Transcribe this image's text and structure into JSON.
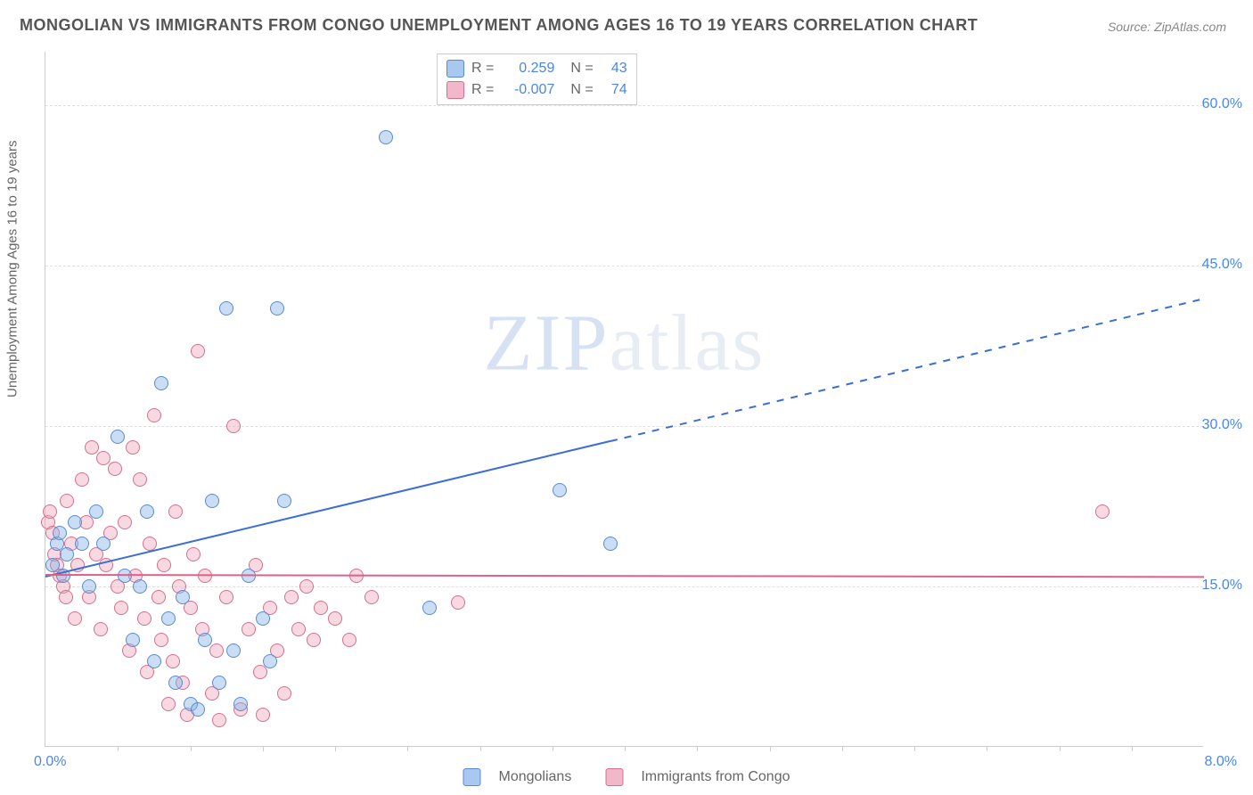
{
  "title": "MONGOLIAN VS IMMIGRANTS FROM CONGO UNEMPLOYMENT AMONG AGES 16 TO 19 YEARS CORRELATION CHART",
  "source": "Source: ZipAtlas.com",
  "watermark_zip": "ZIP",
  "watermark_rest": "atlas",
  "chart": {
    "type": "scatter",
    "y_axis_label": "Unemployment Among Ages 16 to 19 years",
    "xlim": [
      0,
      8.0
    ],
    "ylim": [
      0,
      65
    ],
    "x_ticks": [
      0.0,
      8.0
    ],
    "x_tick_labels": [
      "0.0%",
      "8.0%"
    ],
    "y_ticks": [
      15.0,
      30.0,
      45.0,
      60.0
    ],
    "y_tick_labels": [
      "15.0%",
      "30.0%",
      "45.0%",
      "60.0%"
    ],
    "x_minor_ticks": [
      0.5,
      1.0,
      1.5,
      2.0,
      2.5,
      3.0,
      3.5,
      4.0,
      4.5,
      5.0,
      5.5,
      6.0,
      6.5,
      7.0,
      7.5
    ],
    "background_color": "#ffffff",
    "grid_color": "#e0e0e0",
    "axis_color": "#cccccc",
    "marker_size": 16,
    "series": {
      "blue": {
        "label": "Mongolians",
        "color_fill": "rgba(135,180,232,0.45)",
        "color_stroke": "#5a8bd0",
        "R": "0.259",
        "N": "43",
        "trend": {
          "start": [
            0.0,
            16.0
          ],
          "end": [
            8.0,
            42.0
          ],
          "solid_until_x": 3.9,
          "color": "#3b6fd6"
        },
        "points": [
          [
            0.05,
            17
          ],
          [
            0.08,
            19
          ],
          [
            0.1,
            20
          ],
          [
            0.12,
            16
          ],
          [
            0.15,
            18
          ],
          [
            0.2,
            21
          ],
          [
            0.25,
            19
          ],
          [
            0.3,
            15
          ],
          [
            0.35,
            22
          ],
          [
            0.4,
            19
          ],
          [
            0.5,
            29
          ],
          [
            0.55,
            16
          ],
          [
            0.6,
            10
          ],
          [
            0.65,
            15
          ],
          [
            0.7,
            22
          ],
          [
            0.75,
            8
          ],
          [
            0.8,
            34
          ],
          [
            0.85,
            12
          ],
          [
            0.9,
            6
          ],
          [
            0.95,
            14
          ],
          [
            1.0,
            4
          ],
          [
            1.05,
            3.5
          ],
          [
            1.1,
            10
          ],
          [
            1.15,
            23
          ],
          [
            1.2,
            6
          ],
          [
            1.25,
            41
          ],
          [
            1.3,
            9
          ],
          [
            1.35,
            4
          ],
          [
            1.4,
            16
          ],
          [
            1.5,
            12
          ],
          [
            1.55,
            8
          ],
          [
            1.6,
            41
          ],
          [
            1.65,
            23
          ],
          [
            2.35,
            57
          ],
          [
            2.65,
            13
          ],
          [
            3.55,
            24
          ],
          [
            3.9,
            19
          ]
        ]
      },
      "pink": {
        "label": "Immigrants from Congo",
        "color_fill": "rgba(240,160,180,0.4)",
        "color_stroke": "#d47090",
        "R": "-0.007",
        "N": "74",
        "trend": {
          "start": [
            0.0,
            16.2
          ],
          "end": [
            8.0,
            16.0
          ],
          "solid_until_x": 8.0,
          "color": "#e06088"
        },
        "points": [
          [
            0.02,
            21
          ],
          [
            0.03,
            22
          ],
          [
            0.05,
            20
          ],
          [
            0.06,
            18
          ],
          [
            0.08,
            17
          ],
          [
            0.1,
            16
          ],
          [
            0.12,
            15
          ],
          [
            0.14,
            14
          ],
          [
            0.15,
            23
          ],
          [
            0.18,
            19
          ],
          [
            0.2,
            12
          ],
          [
            0.22,
            17
          ],
          [
            0.25,
            25
          ],
          [
            0.28,
            21
          ],
          [
            0.3,
            14
          ],
          [
            0.32,
            28
          ],
          [
            0.35,
            18
          ],
          [
            0.38,
            11
          ],
          [
            0.4,
            27
          ],
          [
            0.42,
            17
          ],
          [
            0.45,
            20
          ],
          [
            0.48,
            26
          ],
          [
            0.5,
            15
          ],
          [
            0.52,
            13
          ],
          [
            0.55,
            21
          ],
          [
            0.58,
            9
          ],
          [
            0.6,
            28
          ],
          [
            0.62,
            16
          ],
          [
            0.65,
            25
          ],
          [
            0.68,
            12
          ],
          [
            0.7,
            7
          ],
          [
            0.72,
            19
          ],
          [
            0.75,
            31
          ],
          [
            0.78,
            14
          ],
          [
            0.8,
            10
          ],
          [
            0.82,
            17
          ],
          [
            0.85,
            4
          ],
          [
            0.88,
            8
          ],
          [
            0.9,
            22
          ],
          [
            0.92,
            15
          ],
          [
            0.95,
            6
          ],
          [
            0.98,
            3
          ],
          [
            1.0,
            13
          ],
          [
            1.02,
            18
          ],
          [
            1.05,
            37
          ],
          [
            1.08,
            11
          ],
          [
            1.1,
            16
          ],
          [
            1.15,
            5
          ],
          [
            1.18,
            9
          ],
          [
            1.2,
            2.5
          ],
          [
            1.25,
            14
          ],
          [
            1.3,
            30
          ],
          [
            1.35,
            3.5
          ],
          [
            1.4,
            11
          ],
          [
            1.45,
            17
          ],
          [
            1.48,
            7
          ],
          [
            1.5,
            3
          ],
          [
            1.55,
            13
          ],
          [
            1.6,
            9
          ],
          [
            1.65,
            5
          ],
          [
            1.7,
            14
          ],
          [
            1.75,
            11
          ],
          [
            1.8,
            15
          ],
          [
            1.85,
            10
          ],
          [
            1.9,
            13
          ],
          [
            2.0,
            12
          ],
          [
            2.1,
            10
          ],
          [
            2.15,
            16
          ],
          [
            2.25,
            14
          ],
          [
            2.85,
            13.5
          ],
          [
            7.3,
            22
          ]
        ]
      }
    }
  },
  "legend_top": {
    "r_label": "R =",
    "n_label": "N ="
  }
}
